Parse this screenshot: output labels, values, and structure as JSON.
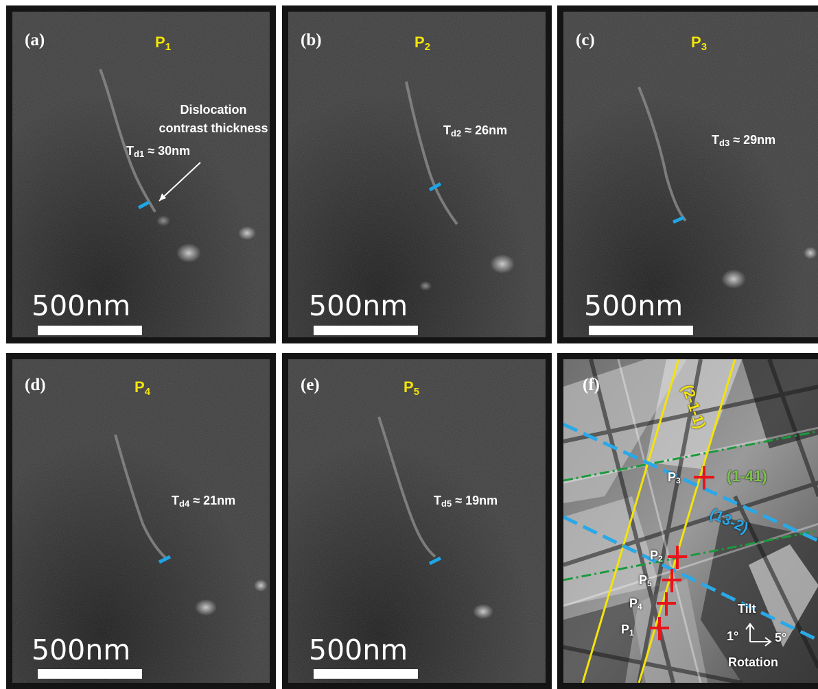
{
  "colors": {
    "tag_yellow": "#f4e409",
    "measure_blue": "#1fa4e4",
    "marker_red": "#e8141c",
    "band_green": "#1a9a3c",
    "band_green_label": "#7cc34a",
    "band_blue_label": "#2aa8e8"
  },
  "panels": [
    {
      "label": "(a)",
      "tag_main": "P",
      "tag_sub": "1",
      "td_main": "T",
      "td_sub": "d1",
      "td_value": "≈ 30nm",
      "scale": "500nm"
    },
    {
      "label": "(b)",
      "tag_main": "P",
      "tag_sub": "2",
      "td_main": "T",
      "td_sub": "d2",
      "td_value": "≈ 26nm",
      "scale": "500nm"
    },
    {
      "label": "(c)",
      "tag_main": "P",
      "tag_sub": "3",
      "td_main": "T",
      "td_sub": "d3",
      "td_value": "≈ 29nm",
      "scale": "500nm"
    },
    {
      "label": "(d)",
      "tag_main": "P",
      "tag_sub": "4",
      "td_main": "T",
      "td_sub": "d4",
      "td_value": "≈ 21nm",
      "scale": "500nm"
    },
    {
      "label": "(e)",
      "tag_main": "P",
      "tag_sub": "5",
      "td_main": "T",
      "td_sub": "d5",
      "td_value": "≈ 19nm",
      "scale": "500nm"
    }
  ],
  "annotation": {
    "line1": "Dislocation",
    "line2": "contrast thickness"
  },
  "kikuchi": {
    "label": "(f)",
    "bands": {
      "yellow": "(2-1-1)",
      "green": "(1-41)",
      "blue": "(13-2)"
    },
    "points": [
      {
        "main": "P",
        "sub": "3"
      },
      {
        "main": "P",
        "sub": "2"
      },
      {
        "main": "P",
        "sub": "5"
      },
      {
        "main": "P",
        "sub": "4"
      },
      {
        "main": "P",
        "sub": "1"
      }
    ],
    "axes": {
      "tilt": "Tilt",
      "rotation": "Rotation",
      "tilt_step": "1°",
      "rotation_step": "5°"
    }
  }
}
